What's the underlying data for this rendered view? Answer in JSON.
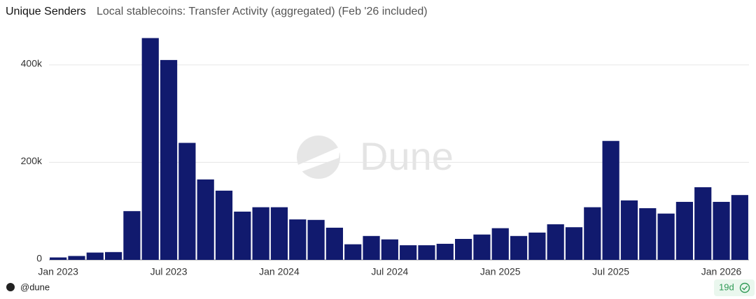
{
  "chart_data": {
    "type": "bar",
    "title": "Unique Senders",
    "subtitle": "Local stablecoins: Transfer Activity (aggregated) (Feb '26 included)",
    "categories": [
      "Jan 2023",
      null,
      null,
      null,
      null,
      null,
      "Jul 2023",
      null,
      null,
      null,
      null,
      null,
      "Jan 2024",
      null,
      null,
      null,
      null,
      null,
      "Jul 2024",
      null,
      null,
      null,
      null,
      null,
      "Jan 2025",
      null,
      null,
      null,
      null,
      null,
      "Jul 2025",
      null,
      null,
      null,
      null,
      null,
      "Jan 2026",
      null
    ],
    "values": [
      5000,
      8000,
      15000,
      16000,
      100000,
      455000,
      410000,
      240000,
      165000,
      142000,
      99000,
      108000,
      108000,
      83000,
      82000,
      66000,
      32000,
      49000,
      42000,
      30000,
      30000,
      33000,
      43000,
      52000,
      65000,
      49000,
      56000,
      73000,
      67000,
      108000,
      244000,
      122000,
      106000,
      95000,
      119000,
      149000,
      119000,
      133000
    ],
    "color": "#111a6e",
    "ylim": [
      0,
      460000
    ],
    "yticks": [
      0,
      {
        "value": 200000,
        "label": "200k"
      },
      {
        "value": 400000,
        "label": "400k"
      }
    ],
    "grid": true,
    "watermark": "Dune",
    "source": "@dune",
    "age": "19d"
  }
}
